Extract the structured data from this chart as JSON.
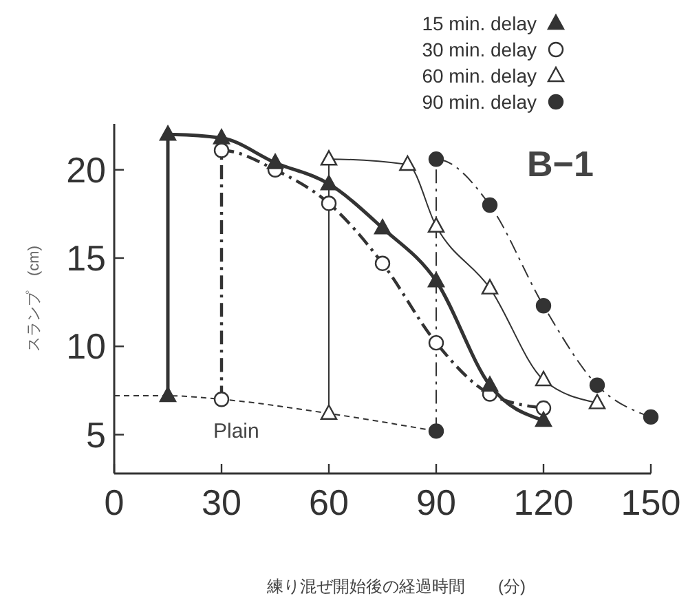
{
  "chart_data": {
    "type": "line",
    "xlabel": "練り混ぜ開始後の経過時間　　(分)",
    "ylabel": "スランプ　(cm)",
    "annotations": [
      "B−1"
    ],
    "xlim": [
      0,
      150
    ],
    "xticks": [
      0,
      30,
      60,
      90,
      120,
      150
    ],
    "ylim": [
      2.8,
      22.6
    ],
    "yticks": [
      5,
      10,
      15,
      20
    ],
    "legend": "top right",
    "grid": false,
    "series": [
      {
        "name": "15 min. delay",
        "color": "#333333",
        "marker": "triangle",
        "line_style": "solid",
        "x": [
          15,
          15,
          30,
          45,
          60,
          75,
          90,
          105,
          120
        ],
        "values": [
          7.2,
          22,
          21.8,
          20.4,
          19.2,
          16.7,
          13.7,
          7.8,
          5.8
        ]
      },
      {
        "name": "30 min. delay",
        "color": "#333333",
        "marker": "circle",
        "line_style": "dashdot",
        "x": [
          30,
          30,
          45,
          60,
          75,
          90,
          105,
          120
        ],
        "values": [
          7.0,
          21.1,
          20.0,
          18.1,
          14.7,
          10.2,
          7.3,
          6.5
        ]
      },
      {
        "name": "60 min. delay",
        "color": "#333333",
        "marker": "triangle",
        "line_style": "solid",
        "x": [
          60,
          60,
          82,
          90,
          105,
          120,
          135
        ],
        "values": [
          6.2,
          20.6,
          20.3,
          16.8,
          13.3,
          8.1,
          6.8
        ]
      },
      {
        "name": "90 min. delay",
        "color": "#333333",
        "marker": "circle",
        "line_style": "dashdot",
        "x": [
          90,
          90,
          105,
          120,
          135,
          150
        ],
        "values": [
          5.2,
          20.6,
          18.0,
          12.3,
          7.8,
          6.0
        ]
      },
      {
        "name": "Plain",
        "color": "#333333",
        "marker": "none",
        "line_style": "dashed",
        "x": [
          0,
          15,
          30,
          60,
          90
        ],
        "values": [
          7.2,
          7.2,
          7.0,
          6.2,
          5.2
        ]
      }
    ]
  }
}
